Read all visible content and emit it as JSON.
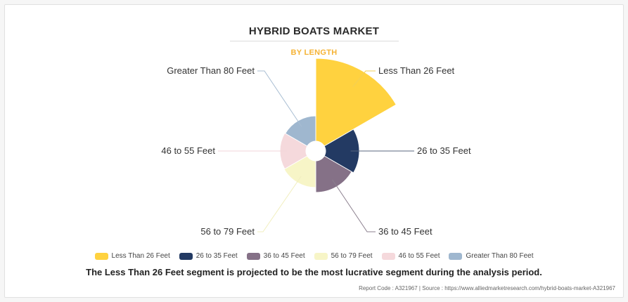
{
  "chart_data": {
    "type": "polar-area",
    "title": "HYBRID BOATS MARKET",
    "subtitle": "BY LENGTH",
    "categories": [
      "Less Than 26 Feet",
      "26 to 35 Feet",
      "36 to 45 Feet",
      "56 to 79 Feet",
      "46 to 55 Feet",
      "Greater Than 80 Feet"
    ],
    "values": [
      118,
      48,
      45,
      38,
      37,
      36
    ],
    "colors": [
      "#ffd23f",
      "#233a63",
      "#857187",
      "#f7f5c7",
      "#f5d9dc",
      "#9fb7cf"
    ],
    "legend_position": "bottom"
  },
  "caption": "The Less Than 26 Feet segment is projected to be the most lucrative segment during the analysis period.",
  "footer": "Report Code : A321967  |  Source : https://www.alliedmarketresearch.com/hybrid-boats-market-A321967"
}
